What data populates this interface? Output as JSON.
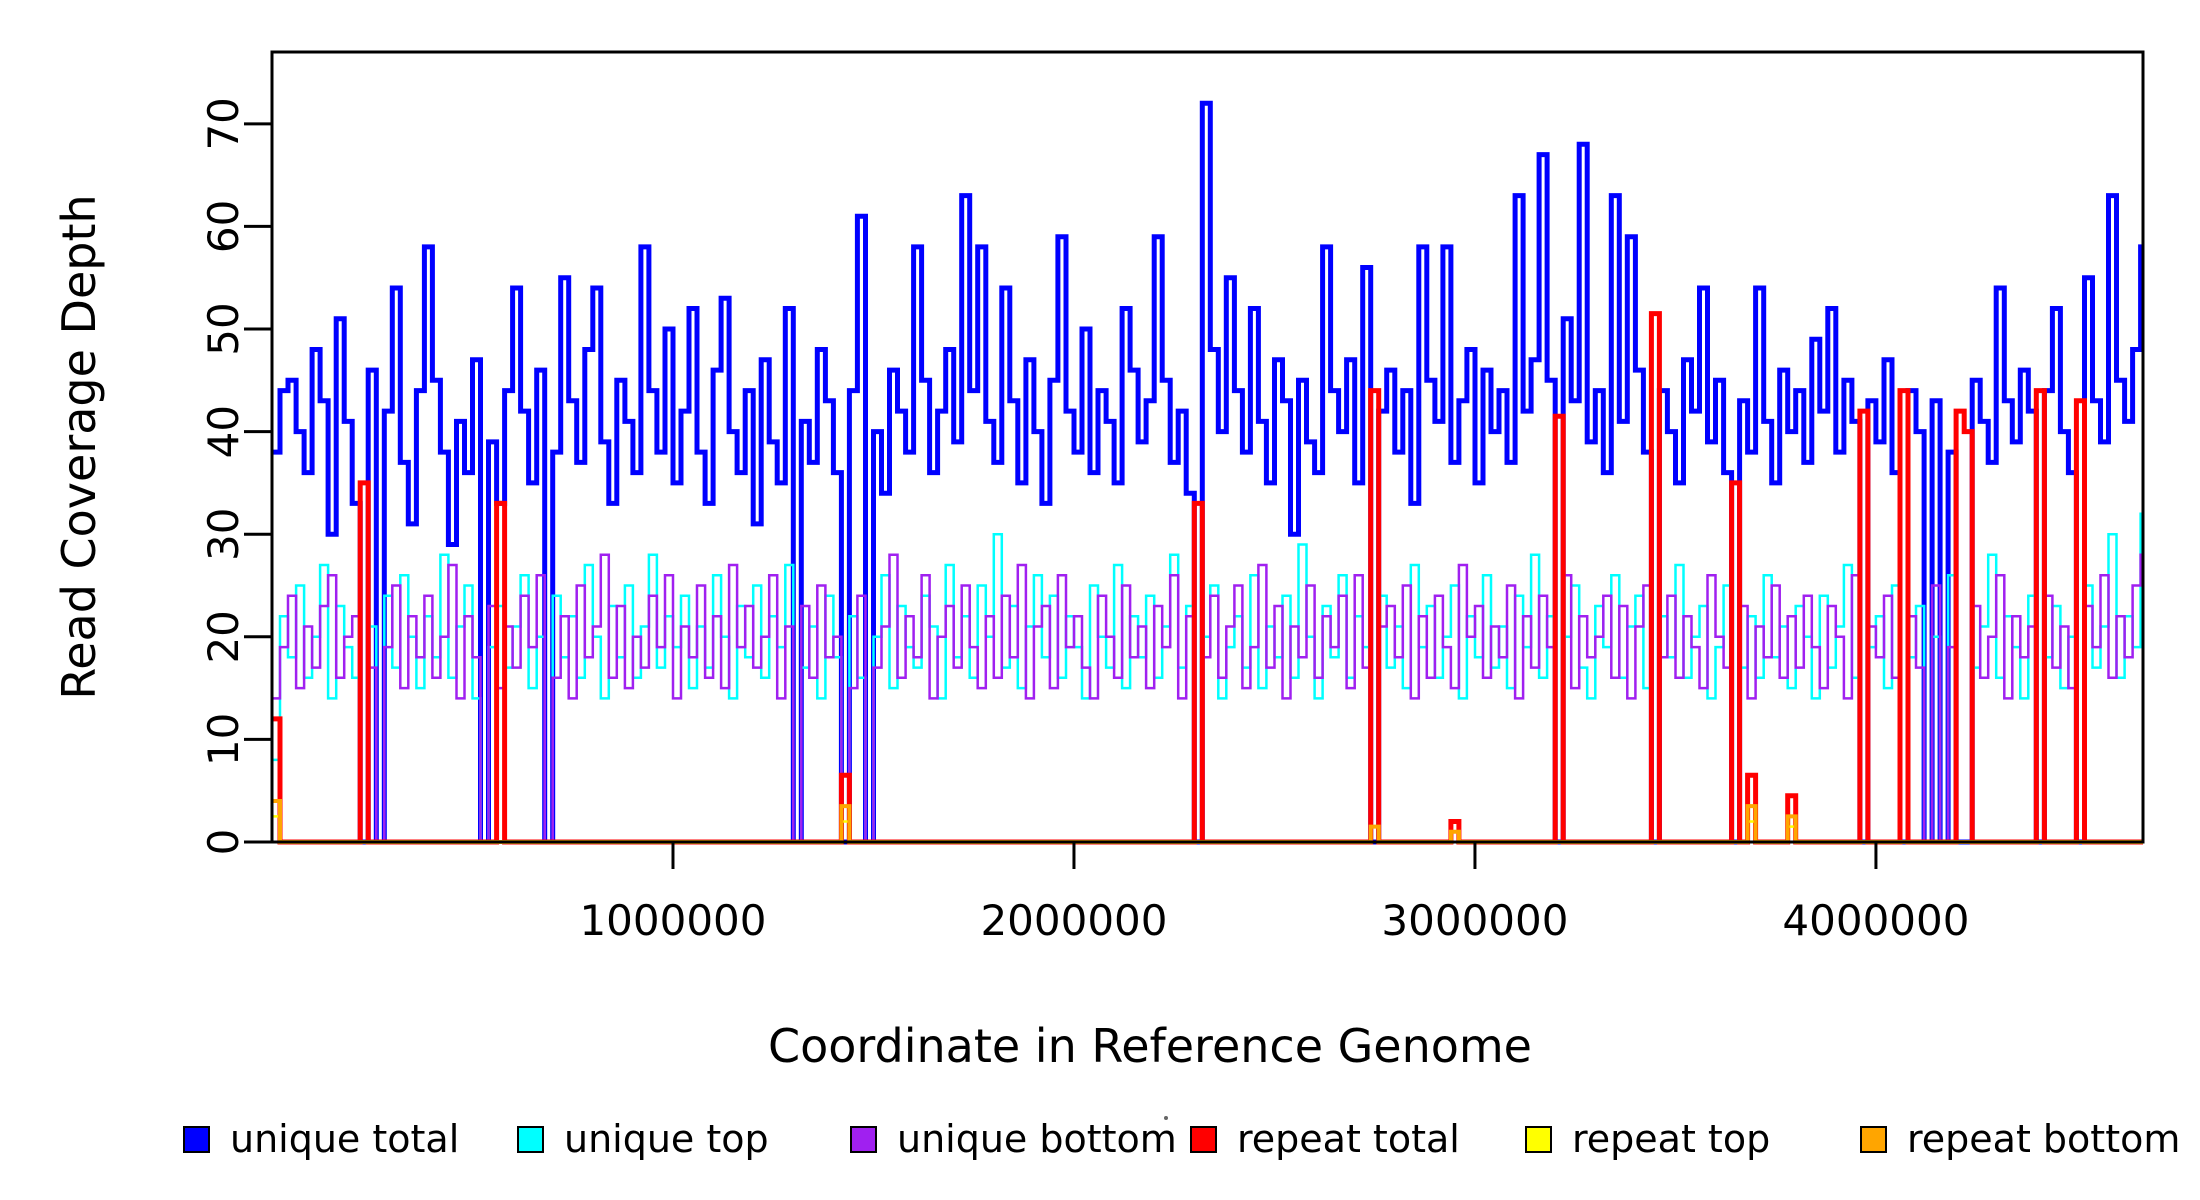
{
  "figure": {
    "background": "#ffffff",
    "plot_frame_color": "#000000"
  },
  "axes": {
    "y": {
      "label": "Read Coverage Depth",
      "ticks": [
        0,
        10,
        20,
        30,
        40,
        50,
        60,
        70
      ],
      "range": [
        0,
        77
      ]
    },
    "x": {
      "label": "Coordinate in Reference Genome",
      "ticks": [
        1000000,
        2000000,
        3000000,
        4000000
      ],
      "tick_labels": [
        "1000000",
        "2000000",
        "3000000",
        "4000000"
      ],
      "range": [
        0,
        4666000
      ]
    }
  },
  "chart_data": {
    "type": "line",
    "step_interpolation": true,
    "title": "",
    "xlabel": "Coordinate in Reference Genome",
    "ylabel": "Read Coverage Depth",
    "xlim": [
      0,
      4666000
    ],
    "ylim": [
      0,
      77
    ],
    "grid": false,
    "legend_position": "bottom",
    "x_start": 0,
    "x_step": 20000,
    "n_points": 234,
    "series": [
      {
        "name": "unique total",
        "color": "#0000ff",
        "lwd": 5,
        "values": [
          38,
          44,
          45,
          40,
          36,
          48,
          43,
          30,
          51,
          41,
          33,
          0,
          46,
          0,
          42,
          54,
          37,
          31,
          44,
          58,
          45,
          38,
          29,
          41,
          36,
          47,
          0,
          39,
          33,
          44,
          54,
          42,
          35,
          46,
          0,
          38,
          55,
          43,
          37,
          48,
          54,
          39,
          33,
          45,
          41,
          36,
          58,
          44,
          38,
          50,
          35,
          42,
          52,
          38,
          33,
          46,
          53,
          40,
          36,
          44,
          31,
          47,
          39,
          35,
          52,
          0,
          41,
          37,
          48,
          43,
          36,
          0,
          44,
          61,
          0,
          40,
          34,
          46,
          42,
          38,
          58,
          45,
          36,
          42,
          48,
          39,
          63,
          44,
          58,
          41,
          37,
          54,
          43,
          35,
          47,
          40,
          33,
          45,
          59,
          42,
          38,
          50,
          36,
          44,
          41,
          35,
          52,
          46,
          39,
          43,
          59,
          45,
          37,
          42,
          34,
          0,
          72,
          48,
          40,
          55,
          44,
          38,
          52,
          41,
          35,
          47,
          43,
          30,
          45,
          39,
          36,
          58,
          44,
          40,
          47,
          35,
          56,
          0,
          42,
          46,
          38,
          44,
          33,
          58,
          45,
          41,
          58,
          37,
          43,
          48,
          35,
          46,
          40,
          44,
          37,
          63,
          42,
          47,
          67,
          45,
          0,
          51,
          43,
          68,
          39,
          44,
          36,
          63,
          41,
          59,
          46,
          38,
          0,
          44,
          40,
          35,
          47,
          42,
          54,
          39,
          45,
          36,
          0,
          43,
          38,
          54,
          41,
          35,
          46,
          40,
          44,
          37,
          49,
          42,
          52,
          38,
          45,
          41,
          0,
          43,
          39,
          47,
          36,
          0,
          44,
          40,
          0,
          43,
          0,
          38,
          0,
          0,
          45,
          41,
          37,
          54,
          43,
          39,
          46,
          42,
          0,
          44,
          52,
          40,
          36,
          0,
          55,
          43,
          39,
          63,
          45,
          41,
          48,
          58
        ]
      },
      {
        "name": "unique top",
        "color": "#00ffff",
        "lwd": 2.5,
        "values": [
          8,
          22,
          18,
          25,
          16,
          20,
          27,
          14,
          23,
          19,
          16,
          0,
          21,
          0,
          24,
          17,
          26,
          20,
          15,
          22,
          18,
          28,
          16,
          21,
          25,
          14,
          0,
          19,
          23,
          17,
          21,
          26,
          15,
          20,
          0,
          24,
          18,
          22,
          16,
          27,
          20,
          14,
          23,
          18,
          25,
          16,
          21,
          28,
          17,
          22,
          19,
          24,
          15,
          21,
          17,
          26,
          20,
          14,
          23,
          18,
          25,
          16,
          22,
          19,
          27,
          0,
          17,
          21,
          14,
          24,
          18,
          0,
          22,
          16,
          0,
          20,
          26,
          15,
          23,
          19,
          17,
          24,
          21,
          14,
          27,
          18,
          22,
          16,
          25,
          20,
          30,
          17,
          23,
          15,
          21,
          26,
          18,
          24,
          16,
          22,
          19,
          14,
          25,
          20,
          17,
          27,
          15,
          22,
          18,
          24,
          16,
          21,
          28,
          17,
          23,
          0,
          20,
          25,
          14,
          19,
          22,
          17,
          26,
          15,
          21,
          18,
          24,
          16,
          29,
          20,
          14,
          23,
          18,
          26,
          16,
          22,
          19,
          0,
          24,
          17,
          21,
          15,
          27,
          19,
          23,
          16,
          20,
          25,
          14,
          22,
          18,
          26,
          17,
          21,
          15,
          24,
          19,
          28,
          16,
          22,
          0,
          20,
          25,
          17,
          14,
          23,
          19,
          26,
          16,
          21,
          24,
          15,
          0,
          22,
          18,
          27,
          16,
          20,
          23,
          14,
          19,
          25,
          0,
          17,
          22,
          16,
          26,
          18,
          21,
          15,
          23,
          20,
          14,
          24,
          17,
          21,
          27,
          16,
          0,
          19,
          22,
          15,
          25,
          0,
          18,
          23,
          0,
          20,
          0,
          26,
          0,
          0,
          17,
          21,
          28,
          16,
          22,
          19,
          14,
          24,
          0,
          18,
          23,
          15,
          20,
          0,
          25,
          17,
          21,
          30,
          16,
          22,
          19,
          32
        ]
      },
      {
        "name": "unique bottom",
        "color": "#a020f0",
        "lwd": 2.5,
        "values": [
          14,
          19,
          24,
          15,
          21,
          17,
          23,
          26,
          16,
          20,
          22,
          0,
          17,
          0,
          19,
          25,
          15,
          22,
          18,
          24,
          16,
          20,
          27,
          14,
          22,
          18,
          0,
          23,
          15,
          21,
          17,
          24,
          19,
          26,
          0,
          16,
          22,
          14,
          25,
          18,
          21,
          28,
          16,
          23,
          15,
          20,
          17,
          24,
          19,
          26,
          14,
          21,
          18,
          25,
          16,
          22,
          15,
          27,
          19,
          23,
          17,
          20,
          26,
          14,
          21,
          0,
          23,
          16,
          25,
          18,
          20,
          0,
          15,
          24,
          0,
          17,
          21,
          28,
          16,
          22,
          18,
          26,
          14,
          20,
          23,
          17,
          25,
          19,
          15,
          22,
          16,
          24,
          18,
          27,
          14,
          21,
          23,
          15,
          26,
          19,
          22,
          17,
          14,
          24,
          20,
          16,
          25,
          18,
          21,
          15,
          23,
          19,
          26,
          14,
          22,
          0,
          18,
          24,
          16,
          21,
          25,
          15,
          19,
          27,
          17,
          23,
          14,
          21,
          18,
          25,
          16,
          22,
          19,
          24,
          15,
          26,
          17,
          0,
          21,
          23,
          18,
          25,
          14,
          22,
          16,
          24,
          19,
          15,
          27,
          20,
          23,
          16,
          21,
          18,
          25,
          14,
          22,
          17,
          24,
          19,
          0,
          26,
          15,
          22,
          18,
          20,
          24,
          16,
          23,
          14,
          21,
          25,
          0,
          18,
          24,
          16,
          22,
          19,
          15,
          26,
          20,
          17,
          0,
          23,
          14,
          21,
          18,
          25,
          16,
          22,
          17,
          24,
          19,
          15,
          23,
          20,
          14,
          26,
          0,
          21,
          18,
          24,
          16,
          0,
          22,
          17,
          0,
          25,
          0,
          19,
          0,
          0,
          23,
          16,
          20,
          26,
          14,
          22,
          18,
          21,
          0,
          24,
          17,
          21,
          15,
          0,
          23,
          19,
          26,
          16,
          22,
          18,
          25,
          28
        ]
      },
      {
        "name": "repeat total",
        "color": "#ff0000",
        "lwd": 5,
        "base": 0,
        "spikes": [
          {
            "i": 0,
            "v": 12
          },
          {
            "i": 11,
            "v": 35
          },
          {
            "i": 28,
            "v": 33
          },
          {
            "i": 71,
            "v": 6.5
          },
          {
            "i": 115,
            "v": 33
          },
          {
            "i": 137,
            "v": 44
          },
          {
            "i": 147,
            "v": 2
          },
          {
            "i": 160,
            "v": 41.5
          },
          {
            "i": 172,
            "v": 51.5
          },
          {
            "i": 182,
            "v": 35
          },
          {
            "i": 184,
            "v": 6.5
          },
          {
            "i": 189,
            "v": 4.5
          },
          {
            "i": 198,
            "v": 42
          },
          {
            "i": 203,
            "v": 44
          },
          {
            "i": 210,
            "v": 42
          },
          {
            "i": 211,
            "v": 40
          },
          {
            "i": 220,
            "v": 44
          },
          {
            "i": 225,
            "v": 43
          }
        ]
      },
      {
        "name": "repeat top",
        "color": "#ffff00",
        "lwd": 2.5,
        "base": 0,
        "spikes": [
          {
            "i": 0,
            "v": 2.5
          },
          {
            "i": 71,
            "v": 2
          },
          {
            "i": 184,
            "v": 2
          },
          {
            "i": 189,
            "v": 1.5
          }
        ]
      },
      {
        "name": "repeat bottom",
        "color": "#ffa500",
        "lwd": 4,
        "base": 0,
        "spikes": [
          {
            "i": 0,
            "v": 4
          },
          {
            "i": 71,
            "v": 3.5
          },
          {
            "i": 137,
            "v": 1.5
          },
          {
            "i": 147,
            "v": 1
          },
          {
            "i": 184,
            "v": 3.5
          },
          {
            "i": 189,
            "v": 2.5
          }
        ]
      }
    ]
  },
  "legend": {
    "items": [
      {
        "label": "unique total",
        "color": "#0000ff"
      },
      {
        "label": "unique top",
        "color": "#00ffff"
      },
      {
        "label": "unique bottom",
        "color": "#a020f0"
      },
      {
        "label": "repeat total",
        "color": "#ff0000"
      },
      {
        "label": "repeat top",
        "color": "#ffff00"
      },
      {
        "label": "repeat bottom",
        "color": "#ffa500"
      }
    ]
  }
}
